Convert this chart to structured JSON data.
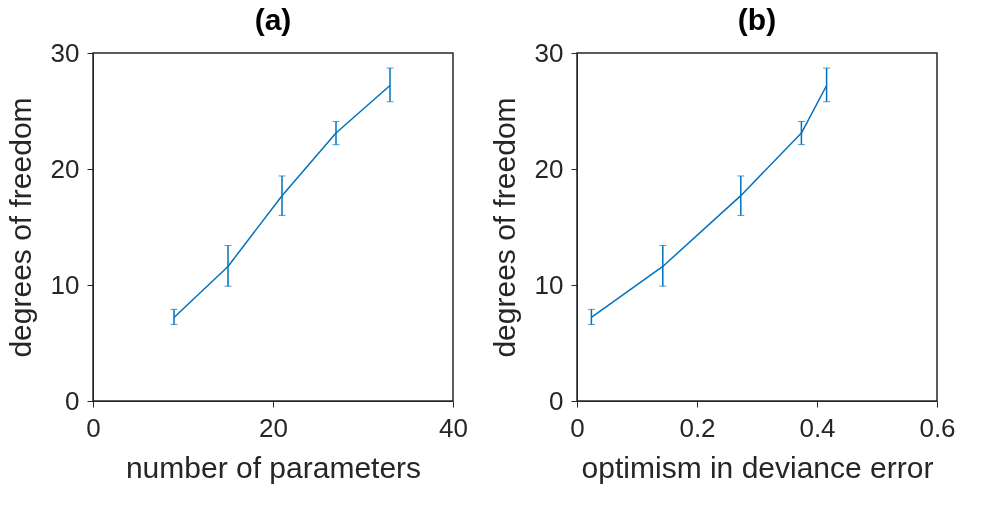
{
  "chart_data": [
    {
      "type": "line",
      "title": "(a)",
      "xlabel": "number of parameters",
      "ylabel": "degrees of freedom",
      "x": [
        9,
        15,
        21,
        27,
        33
      ],
      "series": [
        {
          "color": "#0072bd",
          "values": [
            7.2,
            11.6,
            17.7,
            23.1,
            27.2
          ],
          "errors": [
            [
              6.6,
              7.9
            ],
            [
              9.9,
              13.4
            ],
            [
              16.0,
              19.4
            ],
            [
              22.1,
              24.1
            ],
            [
              25.8,
              28.7
            ]
          ]
        }
      ],
      "xlim": [
        0,
        40
      ],
      "xticks": [
        0,
        20,
        40
      ],
      "ylim": [
        0,
        30
      ],
      "yticks": [
        0,
        10,
        20,
        30
      ],
      "grid": false,
      "marker": "none",
      "line_style": "solid"
    },
    {
      "type": "line",
      "title": "(b)",
      "xlabel": "optimism in deviance error",
      "ylabel": "degrees of freedom",
      "x": [
        0.024,
        0.143,
        0.273,
        0.374,
        0.416
      ],
      "series": [
        {
          "color": "#0072bd",
          "values": [
            7.2,
            11.6,
            17.7,
            23.1,
            27.2
          ],
          "errors": [
            [
              6.6,
              7.9
            ],
            [
              9.9,
              13.4
            ],
            [
              16.0,
              19.4
            ],
            [
              22.1,
              24.1
            ],
            [
              25.8,
              28.7
            ]
          ]
        }
      ],
      "xlim": [
        0,
        0.6
      ],
      "xticks": [
        0,
        0.2,
        0.4,
        0.6
      ],
      "ylim": [
        0,
        30
      ],
      "yticks": [
        0,
        10,
        20,
        30
      ],
      "grid": false,
      "marker": "none",
      "line_style": "solid"
    }
  ]
}
